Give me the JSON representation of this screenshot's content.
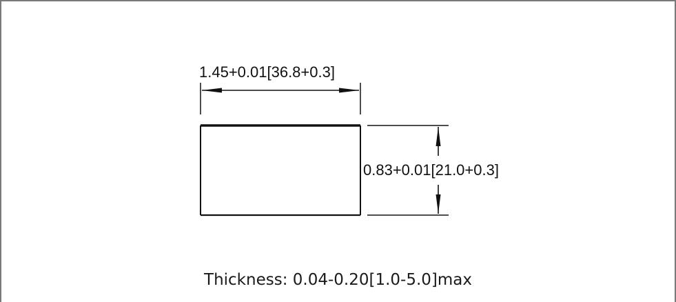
{
  "drawing": {
    "width_dimension": "1.45+0.01[36.8+0.3]",
    "height_dimension": "0.83+0.01[21.0+0.3]",
    "thickness_note": "Thickness: 0.04-0.20[1.0-5.0]max"
  }
}
